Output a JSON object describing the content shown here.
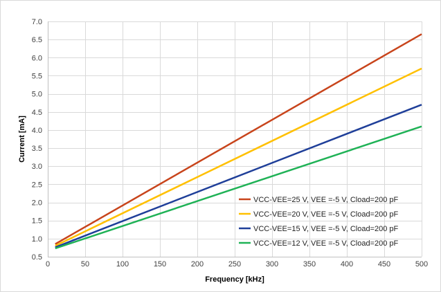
{
  "chart_data": {
    "type": "line",
    "title": "",
    "xlabel": "Frequency [kHz]",
    "ylabel": "Current  [mA]",
    "xlim": [
      0,
      500
    ],
    "ylim": [
      0.5,
      7.0
    ],
    "xticks": [
      0,
      50,
      100,
      150,
      200,
      250,
      300,
      350,
      400,
      450,
      500
    ],
    "xtick_labels": [
      "0",
      "50",
      "100",
      "150",
      "200",
      "250",
      "300",
      "350",
      "400",
      "450",
      "500"
    ],
    "yticks": [
      0.5,
      1.0,
      1.5,
      2.0,
      2.5,
      3.0,
      3.5,
      4.0,
      4.5,
      5.0,
      5.5,
      6.0,
      6.5,
      7.0
    ],
    "ytick_labels": [
      "0.5",
      "1.0",
      "1.5",
      "2.0",
      "2.5",
      "3.0",
      "3.5",
      "4.0",
      "4.5",
      "5.0",
      "5.5",
      "6.0",
      "6.5",
      "7.0"
    ],
    "grid": true,
    "legend_position": "bottom-right",
    "series": [
      {
        "name": "VCC-VEE=25 V, VEE =-5 V, Cload=200 pF",
        "color": "#c8441b",
        "x": [
          10,
          500
        ],
        "y": [
          0.85,
          6.65
        ]
      },
      {
        "name": "VCC-VEE=20 V, VEE =-5 V, Cload=200 pF",
        "color": "#ffc000",
        "x": [
          10,
          500
        ],
        "y": [
          0.8,
          5.7
        ]
      },
      {
        "name": "VCC-VEE=15 V, VEE =-5 V, Cload=200 pF",
        "color": "#1f3f99",
        "x": [
          10,
          500
        ],
        "y": [
          0.76,
          4.7
        ]
      },
      {
        "name": "VCC-VEE=12 V, VEE =-5 V, Cload=200 pF",
        "color": "#1fb256",
        "x": [
          10,
          500
        ],
        "y": [
          0.73,
          4.1
        ]
      }
    ]
  }
}
